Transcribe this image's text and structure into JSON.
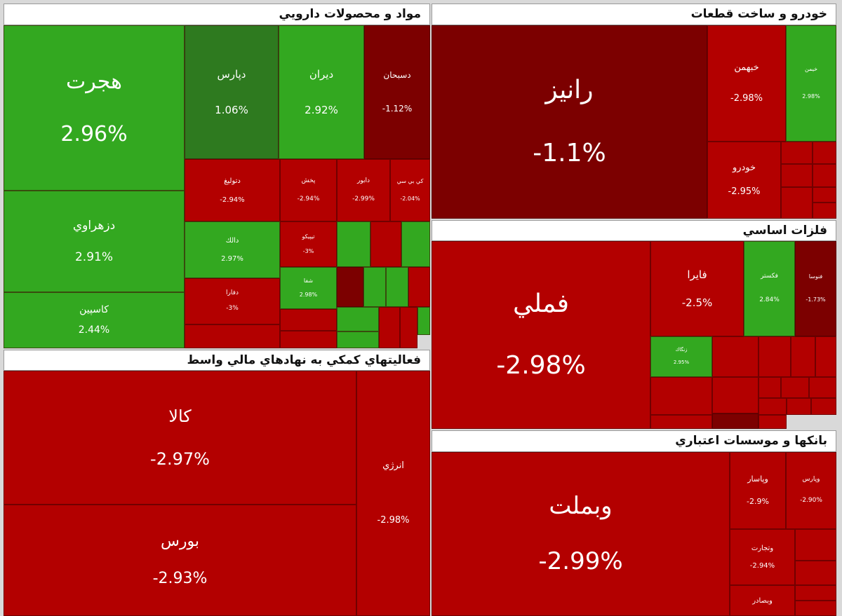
{
  "sectors": [
    {
      "title": "مواد و محصولات دارويي",
      "tiles": [
        {
          "name": "هجرت",
          "change": "2.96%"
        },
        {
          "name": "دزهراوي",
          "change": "2.91%"
        },
        {
          "name": "کاسپين",
          "change": "2.44%"
        },
        {
          "name": "دپارس",
          "change": "1.06%"
        },
        {
          "name": "ديران",
          "change": "2.92%"
        },
        {
          "name": "دسبحان",
          "change": "-1.12%"
        },
        {
          "name": "دتوليغ",
          "change": "-2.94%"
        },
        {
          "name": "پخش",
          "change": "-2.94%"
        },
        {
          "name": "دابور",
          "change": "-2.99%"
        },
        {
          "name": "کي بي سي",
          "change": "-2.04%"
        },
        {
          "name": "دالك",
          "change": "2.97%"
        },
        {
          "name": "دفارا",
          "change": "-3%"
        },
        {
          "name": "تيپيکو",
          "change": "-3%"
        },
        {
          "name": "شفا",
          "change": "2.98%"
        }
      ]
    },
    {
      "title": "خودرو و ساخت قطعات",
      "tiles": [
        {
          "name": "رانيز",
          "change": "-1.1%"
        },
        {
          "name": "خبهمن",
          "change": "-2.98%"
        },
        {
          "name": "خيمن",
          "change": "2.98%"
        },
        {
          "name": "خودرو",
          "change": "-2.95%"
        }
      ]
    },
    {
      "title": "فلزات اساسي",
      "tiles": [
        {
          "name": "فملي",
          "change": "-2.98%"
        },
        {
          "name": "فايرا",
          "change": "-2.5%"
        },
        {
          "name": "فکستر",
          "change": "2.84%"
        },
        {
          "name": "فنوسا",
          "change": "-1.73%"
        },
        {
          "name": "زنگاك",
          "change": "2.95%"
        }
      ]
    },
    {
      "title": "فعاليتهاي کمکي به نهادهاي مالي واسط",
      "tiles": [
        {
          "name": "کالا",
          "change": "-2.97%"
        },
        {
          "name": "بورس",
          "change": "-2.93%"
        },
        {
          "name": "انرژي",
          "change": "-2.98%"
        }
      ]
    },
    {
      "title": "بانکها و موسسات اعتباري",
      "tiles": [
        {
          "name": "وبملت",
          "change": "-2.99%"
        },
        {
          "name": "وپاسار",
          "change": "-2.9%"
        },
        {
          "name": "وپارس",
          "change": "-2.90%"
        },
        {
          "name": "وتجارت",
          "change": "-2.94%"
        },
        {
          "name": "وبصادر"
        }
      ]
    }
  ]
}
